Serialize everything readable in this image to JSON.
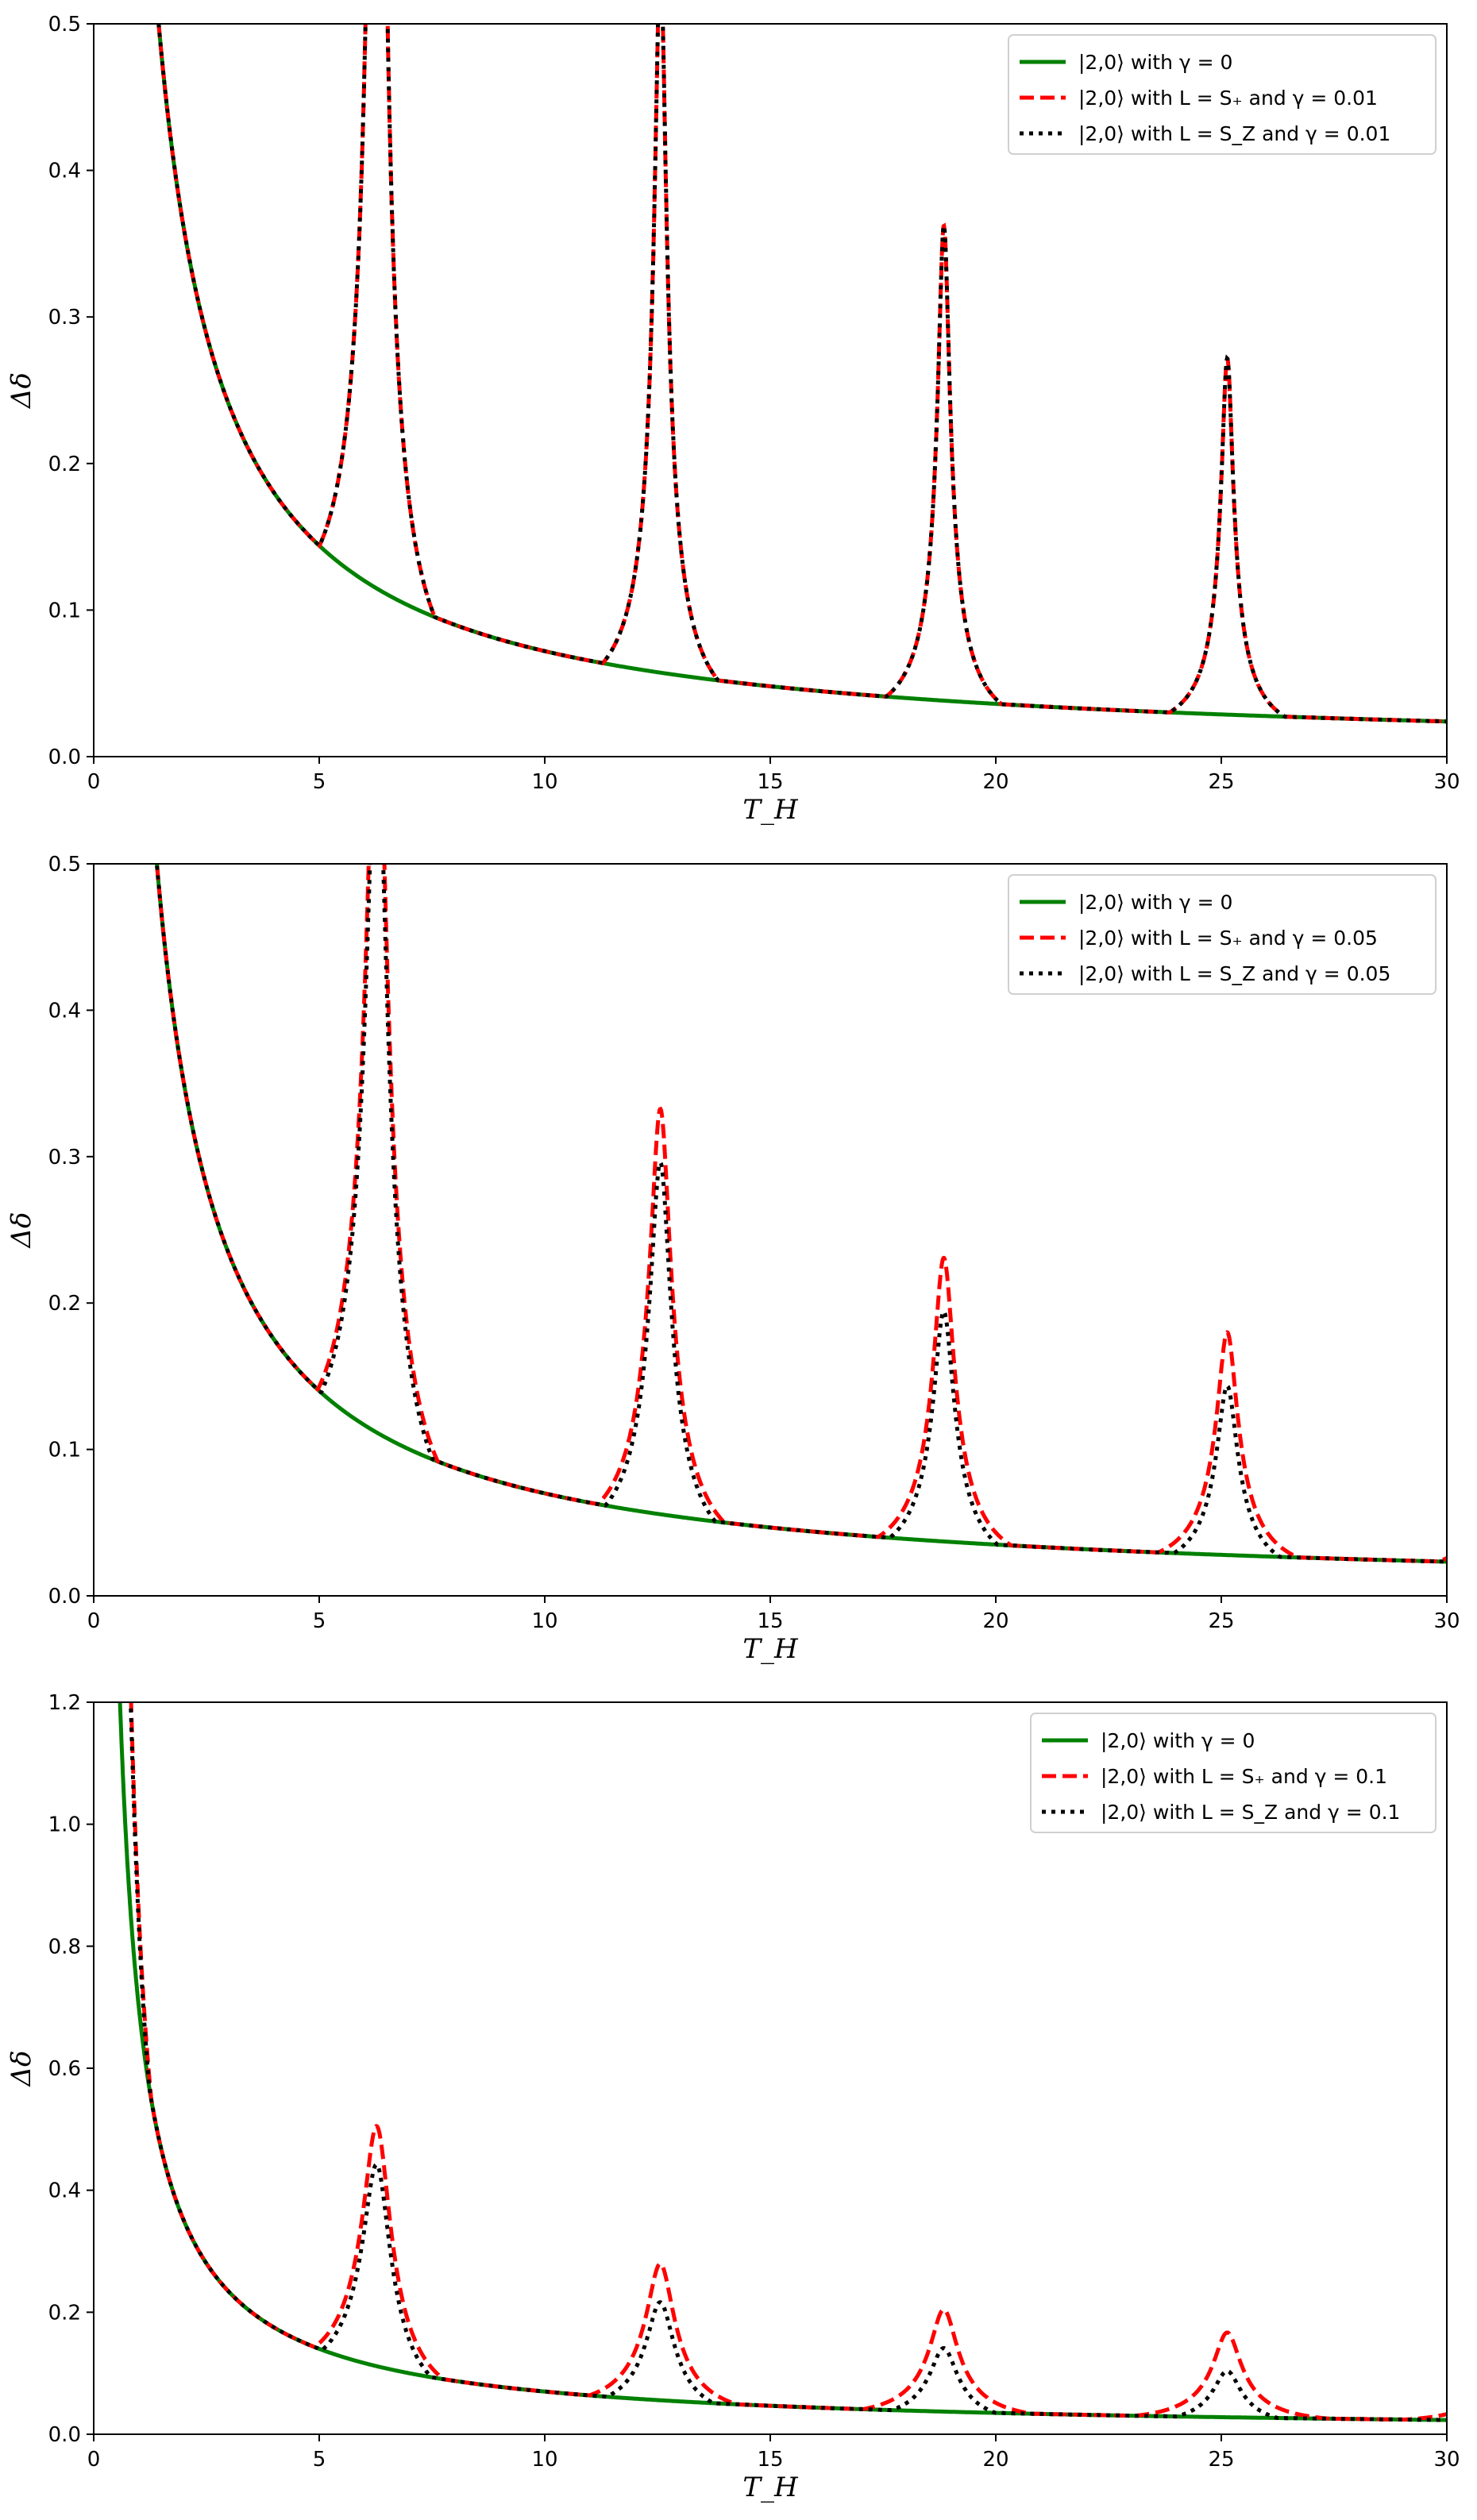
{
  "chart_data": [
    {
      "type": "line",
      "panel": "top",
      "title": "",
      "xlabel": "T_H",
      "ylabel": "Δδ",
      "xlim": [
        0,
        30
      ],
      "ylim": [
        0,
        0.5
      ],
      "xticks": [
        0,
        5,
        10,
        15,
        20,
        25,
        30
      ],
      "yticks": [
        0.0,
        0.1,
        0.2,
        0.3,
        0.4,
        0.5
      ],
      "grid": false,
      "legend_position": "top-right",
      "resonance_period": 6.283,
      "series": [
        {
          "name": "|2,0⟩ with γ = 0",
          "style": "solid",
          "color": "#008000",
          "model": "k/x",
          "k": 0.72
        },
        {
          "name": "|2,0⟩ with L = S₊ and γ = 0.01",
          "style": "dashed",
          "color": "#ff0000",
          "model": "k/x_resonant",
          "k": 0.72,
          "gamma": 0.01,
          "floor_growth": 0.0
        },
        {
          "name": "|2,0⟩ with L = S_Z and γ = 0.01",
          "style": "dotted",
          "color": "#000000",
          "model": "k/x_resonant",
          "k": 0.72,
          "gamma": 0.01,
          "floor_growth": 0.0
        }
      ]
    },
    {
      "type": "line",
      "panel": "middle",
      "title": "",
      "xlabel": "T_H",
      "ylabel": "Δδ",
      "xlim": [
        0,
        30
      ],
      "ylim": [
        0,
        0.5
      ],
      "xticks": [
        0,
        5,
        10,
        15,
        20,
        25,
        30
      ],
      "yticks": [
        0.0,
        0.1,
        0.2,
        0.3,
        0.4,
        0.5
      ],
      "grid": false,
      "legend_position": "top-right",
      "resonance_period": 6.283,
      "series": [
        {
          "name": "|2,0⟩ with γ = 0",
          "style": "solid",
          "color": "#008000",
          "model": "k/x",
          "k": 0.7
        },
        {
          "name": "|2,0⟩ with L = S₊ and γ = 0.05",
          "style": "dashed",
          "color": "#ff0000",
          "model": "k/x_resonant",
          "k": 0.7,
          "gamma": 0.05,
          "floor_growth": 0.045
        },
        {
          "name": "|2,0⟩ with L = S_Z and γ = 0.05",
          "style": "dotted",
          "color": "#000000",
          "model": "k/x_resonant",
          "k": 0.7,
          "gamma": 0.05,
          "floor_growth": -0.015
        }
      ]
    },
    {
      "type": "line",
      "panel": "bottom",
      "title": "",
      "xlabel": "T_H",
      "ylabel": "Δδ",
      "xlim": [
        0,
        30
      ],
      "ylim": [
        0,
        1.2
      ],
      "xticks": [
        0,
        5,
        10,
        15,
        20,
        25,
        30
      ],
      "yticks": [
        0.0,
        0.2,
        0.4,
        0.6,
        0.8,
        1.0,
        1.2
      ],
      "grid": false,
      "legend_position": "top-right",
      "resonance_period": 6.283,
      "series": [
        {
          "name": "|2,0⟩ with γ = 0",
          "style": "solid",
          "color": "#008000",
          "model": "k/x",
          "k": 0.7
        },
        {
          "name": "|2,0⟩ with L = S₊ and γ = 0.1",
          "style": "dashed",
          "color": "#ff0000",
          "model": "k/x_resonant",
          "k": 0.7,
          "gamma": 0.1,
          "floor_growth": 0.12
        },
        {
          "name": "|2,0⟩ with L = S_Z and γ = 0.1",
          "style": "dotted",
          "color": "#000000",
          "model": "k/x_resonant",
          "k": 0.7,
          "gamma": 0.1,
          "floor_growth": -0.02
        }
      ]
    }
  ]
}
